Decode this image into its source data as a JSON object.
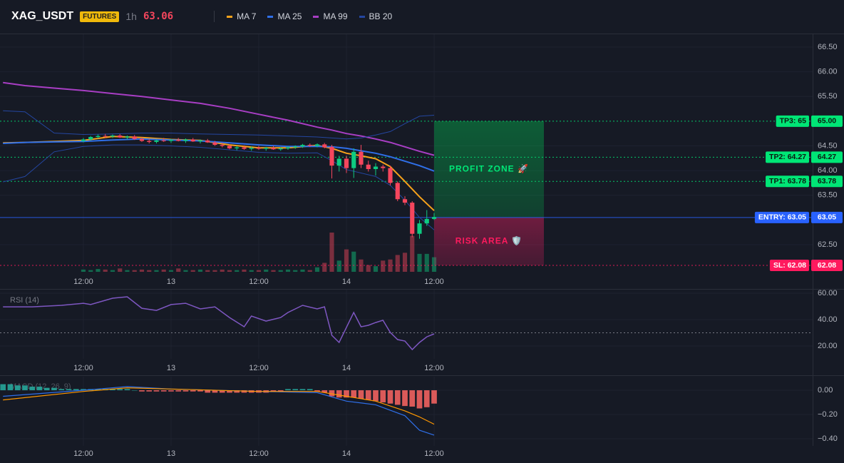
{
  "chart_data": [
    {
      "type": "candlestick",
      "title": "XAG_USDT",
      "badge": "FUTURES",
      "interval": "1h",
      "last_price": 63.06,
      "up_color": "#0ecb81",
      "down_color": "#f6465d",
      "xlim": [
        -11.41,
        99.8
      ],
      "xticks": [
        {
          "value": 0,
          "label": "12:00"
        },
        {
          "value": 12,
          "label": "13"
        },
        {
          "value": 24,
          "label": "12:00"
        },
        {
          "value": 36,
          "label": "14"
        },
        {
          "value": 48,
          "label": "12:00"
        }
      ],
      "ylim": [
        61.95,
        66.76
      ],
      "yticks": [
        {
          "value": 62.5,
          "label": "62.50"
        },
        {
          "value": 63.5,
          "label": "63.50"
        },
        {
          "value": 64,
          "label": "64.00"
        },
        {
          "value": 64.5,
          "label": "64.50"
        },
        {
          "value": 65.5,
          "label": "65.50"
        },
        {
          "value": 66,
          "label": "66.00"
        },
        {
          "value": 66.5,
          "label": "66.50"
        }
      ],
      "grid": true,
      "open": [
        64.6,
        64.63,
        64.68,
        64.7,
        64.69,
        64.71,
        64.67,
        64.69,
        64.64,
        64.6,
        64.58,
        64.61,
        64.6,
        64.62,
        64.6,
        64.63,
        64.59,
        64.61,
        64.57,
        64.52,
        64.5,
        64.45,
        64.47,
        64.44,
        64.46,
        64.44,
        64.46,
        64.43,
        64.45,
        64.47,
        64.49,
        64.52,
        64.5,
        64.53,
        64.48,
        64.1,
        64.24,
        64.05,
        64.38,
        64.12,
        64.03,
        64.08,
        64.05,
        63.75,
        63.42,
        63.35,
        62.72,
        62.93,
        63.02
      ],
      "high": [
        64.66,
        64.7,
        64.73,
        64.74,
        64.73,
        64.74,
        64.71,
        64.72,
        64.67,
        64.64,
        64.63,
        64.66,
        64.64,
        64.66,
        64.65,
        64.66,
        64.63,
        64.64,
        64.6,
        64.56,
        64.53,
        64.5,
        64.51,
        64.49,
        64.5,
        64.48,
        64.5,
        64.47,
        64.49,
        64.51,
        64.54,
        64.55,
        64.55,
        64.56,
        64.52,
        64.3,
        64.3,
        64.45,
        64.52,
        64.2,
        64.15,
        64.12,
        64.1,
        63.78,
        63.48,
        63.38,
        63.0,
        63.2,
        63.14
      ],
      "low": [
        64.57,
        64.61,
        64.65,
        64.66,
        64.66,
        64.66,
        64.63,
        64.62,
        64.58,
        64.55,
        64.55,
        64.58,
        64.56,
        64.59,
        64.56,
        64.58,
        64.55,
        64.56,
        64.5,
        64.47,
        64.43,
        64.41,
        64.42,
        64.4,
        64.42,
        64.4,
        64.42,
        64.4,
        64.42,
        64.44,
        64.46,
        64.48,
        64.47,
        64.45,
        63.84,
        63.98,
        63.95,
        63.85,
        64.05,
        63.98,
        63.9,
        63.98,
        63.7,
        63.38,
        63.3,
        62.65,
        62.62,
        62.88,
        63.0
      ],
      "close": [
        64.63,
        64.68,
        64.7,
        64.69,
        64.71,
        64.67,
        64.69,
        64.64,
        64.6,
        64.58,
        64.61,
        64.6,
        64.62,
        64.6,
        64.63,
        64.59,
        64.61,
        64.57,
        64.52,
        64.5,
        64.45,
        64.47,
        64.44,
        64.46,
        64.44,
        64.46,
        64.43,
        64.45,
        64.47,
        64.49,
        64.52,
        64.5,
        64.53,
        64.47,
        64.1,
        64.24,
        64.05,
        64.38,
        64.12,
        64.03,
        64.08,
        64.05,
        63.75,
        63.42,
        63.35,
        62.72,
        62.93,
        63.02,
        63.06
      ],
      "volume": [
        4,
        3,
        5,
        4,
        3,
        6,
        3,
        3,
        4,
        3,
        3,
        4,
        3,
        6,
        3,
        3,
        4,
        3,
        3,
        4,
        3,
        3,
        4,
        3,
        3,
        4,
        3,
        3,
        4,
        3,
        4,
        3,
        8,
        16,
        70,
        20,
        40,
        36,
        22,
        12,
        10,
        20,
        22,
        30,
        34,
        64,
        32,
        32,
        26
      ],
      "series": [
        {
          "name": "MA 7",
          "color": "#f7a21b",
          "x": [
            -11,
            -8,
            -4,
            0,
            4,
            8,
            12,
            16,
            20,
            24,
            28,
            32,
            34,
            36,
            38,
            40,
            42,
            44,
            46,
            48
          ],
          "values": [
            64.56,
            64.57,
            64.59,
            64.61,
            64.69,
            64.67,
            64.63,
            64.61,
            64.52,
            64.46,
            64.46,
            64.51,
            64.45,
            64.35,
            64.3,
            64.24,
            64.08,
            63.78,
            63.47,
            63.19
          ]
        },
        {
          "name": "MA 25",
          "color": "#2f6fe8",
          "x": [
            -11,
            -8,
            -4,
            0,
            4,
            8,
            12,
            16,
            20,
            24,
            28,
            32,
            34,
            36,
            38,
            40,
            42,
            44,
            46,
            48
          ],
          "values": [
            64.55,
            64.57,
            64.58,
            64.59,
            64.62,
            64.64,
            64.62,
            64.6,
            64.56,
            64.52,
            64.49,
            64.49,
            64.48,
            64.45,
            64.4,
            64.35,
            64.28,
            64.19,
            64.1,
            63.99
          ]
        },
        {
          "name": "MA 99",
          "color": "#a83ec4",
          "x": [
            -11,
            -8,
            -4,
            0,
            4,
            8,
            12,
            16,
            20,
            24,
            28,
            32,
            34,
            36,
            38,
            40,
            42,
            44,
            46,
            48
          ],
          "values": [
            65.78,
            65.72,
            65.67,
            65.62,
            65.56,
            65.5,
            65.43,
            65.36,
            65.26,
            65.14,
            65.02,
            64.88,
            64.82,
            64.75,
            64.7,
            64.64,
            64.57,
            64.48,
            64.39,
            64.31
          ]
        },
        {
          "name": "BB 20",
          "color": "#2446a0",
          "x": [
            -11,
            -8,
            -4,
            0,
            4,
            8,
            12,
            16,
            20,
            24,
            28,
            32,
            34,
            36,
            38,
            40,
            42,
            44,
            46,
            48
          ],
          "upper": [
            65.21,
            65.19,
            64.76,
            64.73,
            64.74,
            64.76,
            64.76,
            64.74,
            64.73,
            64.72,
            64.7,
            64.68,
            64.66,
            64.64,
            64.66,
            64.72,
            64.79,
            64.95,
            65.1,
            65.12
          ],
          "lower": [
            63.77,
            63.88,
            64.38,
            64.49,
            64.52,
            64.52,
            64.5,
            64.47,
            64.42,
            64.37,
            64.35,
            64.36,
            64.2,
            64.02,
            63.95,
            63.88,
            63.7,
            63.4,
            63.05,
            62.8
          ]
        }
      ],
      "levels": [
        {
          "label": "TP3: 65",
          "value": 65,
          "value_label": "65.00",
          "color": "#00e676",
          "text_color": "#0b1a10",
          "dash": true
        },
        {
          "label": "TP2: 64.27",
          "value": 64.27,
          "value_label": "64.27",
          "color": "#00e676",
          "text_color": "#0b1a10",
          "dash": true
        },
        {
          "label": "TP1: 63.78",
          "value": 63.78,
          "value_label": "63.78",
          "color": "#00e676",
          "text_color": "#0b1a10",
          "dash": true
        },
        {
          "label": "ENTRY: 63.05",
          "value": 63.05,
          "value_label": "63.05",
          "color": "#2962ff",
          "text_color": "#ffffff",
          "dash": false
        },
        {
          "label": "SL: 62.08",
          "value": 62.08,
          "value_label": "62.08",
          "color": "#ff1a5e",
          "text_color": "#ffffff",
          "dash": true
        }
      ],
      "zones": [
        {
          "label": "PROFIT ZONE 🚀",
          "from": 63.05,
          "to": 65,
          "color": "#00e676"
        },
        {
          "label": "RISK AREA 🛡️",
          "from": 62.08,
          "to": 63.05,
          "color": "#ff1a5e"
        }
      ]
    },
    {
      "type": "line",
      "title": "RSI (14)",
      "color": "#7e57c2",
      "xlim": [
        -11.41,
        99.8
      ],
      "xticks": [
        {
          "value": 0,
          "label": "12:00"
        },
        {
          "value": 12,
          "label": "13"
        },
        {
          "value": 24,
          "label": "12:00"
        },
        {
          "value": 36,
          "label": "14"
        },
        {
          "value": 48,
          "label": "12:00"
        }
      ],
      "ylim": [
        10.3,
        62.7
      ],
      "yticks": [
        {
          "value": 20,
          "label": "20.00"
        },
        {
          "value": 40,
          "label": "40.00"
        },
        {
          "value": 60,
          "label": "60.00"
        }
      ],
      "grid": true,
      "hline": 30,
      "x": [
        -11,
        -7,
        -3,
        0,
        1,
        4,
        6,
        8,
        10,
        12,
        14,
        16,
        18,
        20,
        22,
        23,
        25,
        27,
        28,
        30,
        32,
        33,
        34,
        35,
        37,
        38,
        39,
        40,
        41,
        42,
        43,
        44,
        45,
        46,
        47,
        48
      ],
      "values": [
        49.7,
        49.7,
        50.8,
        52.4,
        51.4,
        56.2,
        57.3,
        48.6,
        47.0,
        51.4,
        52.4,
        48.1,
        49.7,
        41.6,
        34.6,
        42.7,
        38.9,
        41.6,
        45.4,
        50.8,
        48.1,
        49.7,
        28.1,
        22.7,
        45.4,
        34.6,
        35.7,
        37.8,
        39.5,
        30.3,
        24.9,
        23.8,
        17.3,
        22.7,
        27.0,
        29.2
      ]
    },
    {
      "type": "macd",
      "title": "MACD (12, 26, 9)",
      "xlim": [
        -11.41,
        99.8
      ],
      "xticks": [
        {
          "value": 0,
          "label": "12:00"
        },
        {
          "value": 12,
          "label": "13"
        },
        {
          "value": 24,
          "label": "12:00"
        },
        {
          "value": 36,
          "label": "14"
        },
        {
          "value": 48,
          "label": "12:00"
        }
      ],
      "ylim": [
        -0.459,
        0.112
      ],
      "yticks": [
        {
          "value": 0,
          "label": "0.00"
        },
        {
          "value": -0.2,
          "label": "−0.20"
        },
        {
          "value": -0.4,
          "label": "−0.40"
        }
      ],
      "grid": true,
      "histogram": {
        "up_color": "#26a69a",
        "down_color": "#f0625f",
        "x": [
          -11,
          -10,
          -9,
          -8,
          -7,
          -6,
          -5,
          -4,
          -3,
          -2,
          -1,
          0,
          1,
          2,
          3,
          4,
          5,
          6,
          7,
          8,
          9,
          10,
          11,
          12,
          13,
          14,
          15,
          16,
          17,
          18,
          19,
          20,
          21,
          22,
          23,
          24,
          25,
          26,
          27,
          28,
          29,
          30,
          31,
          32,
          33,
          34,
          35,
          36,
          37,
          38,
          39,
          40,
          41,
          42,
          43,
          44,
          45,
          46,
          47,
          48
        ],
        "values": [
          0.05,
          0.05,
          0.04,
          0.04,
          0.03,
          0.03,
          0.02,
          0.02,
          0.01,
          0.01,
          0.01,
          0.01,
          0.01,
          0.01,
          0.01,
          0.01,
          0.01,
          0.01,
          0.0,
          -0.01,
          -0.01,
          -0.01,
          -0.01,
          -0.01,
          -0.01,
          -0.01,
          -0.01,
          -0.01,
          -0.02,
          -0.02,
          -0.02,
          -0.02,
          -0.02,
          -0.02,
          -0.02,
          -0.02,
          -0.02,
          -0.01,
          -0.01,
          0.01,
          0.01,
          0.01,
          0.01,
          -0.01,
          -0.02,
          -0.05,
          -0.06,
          -0.06,
          -0.06,
          -0.07,
          -0.08,
          -0.09,
          -0.1,
          -0.11,
          -0.12,
          -0.13,
          -0.135,
          -0.15,
          -0.14,
          -0.11
        ]
      },
      "macd": {
        "color": "#2f6fe8",
        "x": [
          -11,
          0,
          6,
          12,
          24,
          32,
          36,
          40,
          44,
          46,
          48
        ],
        "values": [
          -0.05,
          0.0,
          0.03,
          0.01,
          -0.01,
          -0.02,
          -0.09,
          -0.12,
          -0.21,
          -0.33,
          -0.37
        ]
      },
      "signal": {
        "color": "#ff9800",
        "x": [
          -11,
          0,
          6,
          12,
          24,
          32,
          36,
          40,
          44,
          46,
          48
        ],
        "values": [
          -0.08,
          -0.01,
          0.02,
          0.01,
          -0.01,
          -0.01,
          -0.05,
          -0.09,
          -0.17,
          -0.22,
          -0.28
        ]
      }
    }
  ]
}
